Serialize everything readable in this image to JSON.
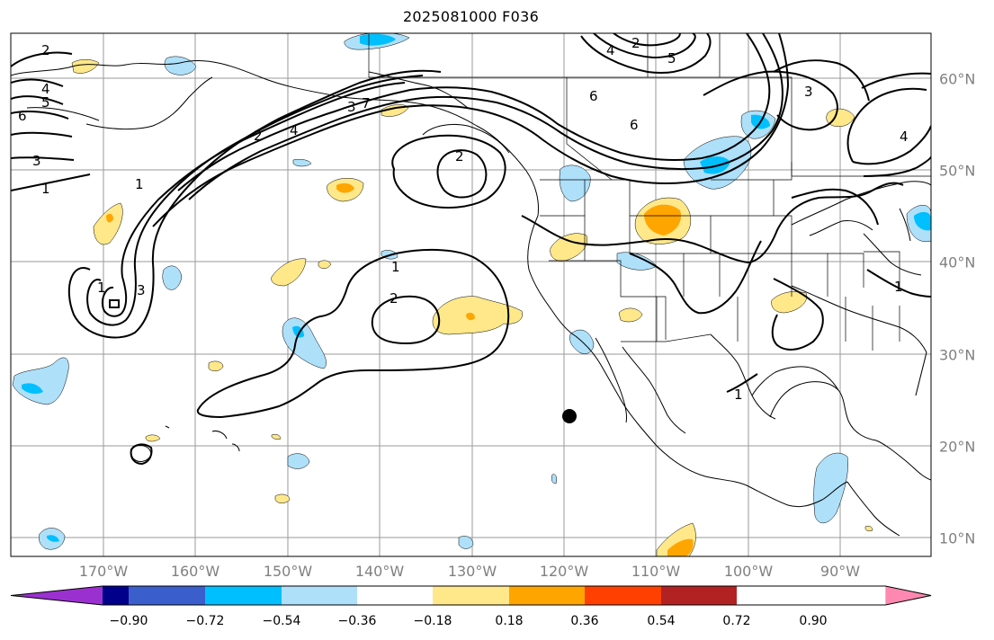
{
  "title": "2025081000 F036",
  "lon_labels": [
    "170°W",
    "160°W",
    "150°W",
    "140°W",
    "130°W",
    "120°W",
    "110°W",
    "100°W",
    "90°W"
  ],
  "lat_labels": [
    "60°N",
    "50°N",
    "40°N",
    "30°N",
    "20°N",
    "10°N"
  ],
  "colorbar": {
    "colors": [
      "#9b30d0",
      "#00008b",
      "#3a5fcd",
      "#00bfff",
      "#aee0fa",
      "#ffffff",
      "#ffe88a",
      "#ffa500",
      "#ff4000",
      "#b22222",
      "#ff88b0"
    ],
    "ticks": [
      "−0.90",
      "−0.72",
      "−0.54",
      "−0.36",
      "−0.18",
      "0.18",
      "0.36",
      "0.54",
      "0.72",
      "0.90"
    ]
  },
  "contour_labels": [
    "2",
    "4",
    "5",
    "6",
    "3",
    "1",
    "1",
    "2",
    "1",
    "2",
    "1",
    "2",
    "3",
    "4",
    "6",
    "7",
    "2",
    "4",
    "5",
    "3",
    "6",
    "3",
    "4",
    "1",
    "1"
  ]
}
